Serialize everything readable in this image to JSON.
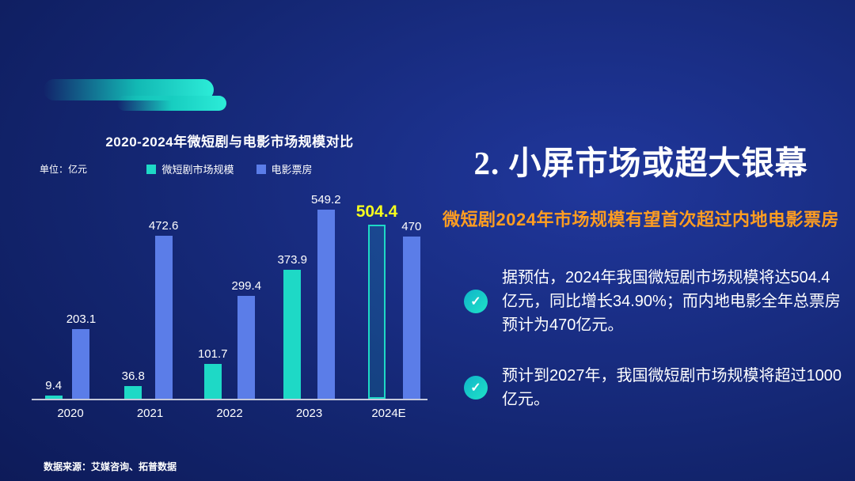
{
  "chart": {
    "title": "2020-2024年微短剧与电影市场规模对比",
    "unit_label": "单位：亿元"
  },
  "chart_data": {
    "type": "bar",
    "title": "2020-2024年微短剧与电影市场规模对比",
    "unit": "亿元",
    "categories": [
      "2020",
      "2021",
      "2022",
      "2023",
      "2024E"
    ],
    "series": [
      {
        "name": "微短剧市场规模",
        "color": "#1ed9c6",
        "values": [
          9.4,
          36.8,
          101.7,
          373.9,
          504.4
        ]
      },
      {
        "name": "电影票房",
        "color": "#5b7de8",
        "values": [
          203.1,
          472.6,
          299.4,
          549.2,
          470
        ]
      }
    ],
    "highlight": {
      "series_index": 0,
      "category_index": 4,
      "label_color": "#f6ff1e",
      "bar_style": "outlined"
    },
    "ylim": [
      0,
      560
    ],
    "legend_position": "top",
    "grid": false
  },
  "right_panel": {
    "title": "2. 小屏市场或超大银幕",
    "subtitle": "微短剧2024年市场规模有望首次超过内地电影票房",
    "bullets": [
      {
        "text": "据预估，2024年我国微短剧市场规模将达504.4亿元，同比增长34.90%；而内地电影全年总票房预计为470亿元。"
      },
      {
        "text": "预计到2027年，我国微短剧市场规模将超过1000亿元。"
      }
    ]
  },
  "footer": {
    "source": "数据来源：艾媒咨询、拓普数据"
  },
  "colors": {
    "background_center": "#20379c",
    "background_edge": "#071042",
    "teal": "#1ed9c6",
    "blue": "#5b7de8",
    "highlight_yellow": "#f6ff1e",
    "subtitle_orange": "#ff9d21"
  }
}
